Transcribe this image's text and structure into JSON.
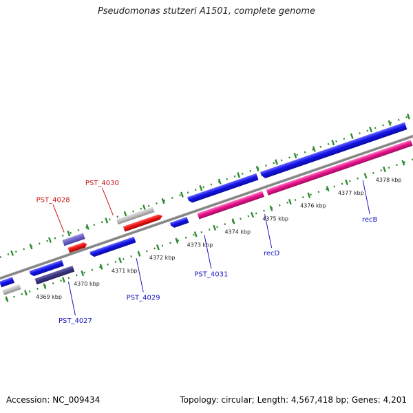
{
  "header": {
    "title": "Pseudomonas stutzeri A1501, complete genome"
  },
  "footer": {
    "accession": "Accession: NC_009434",
    "summary": "Topology: circular; Length: 4,567,418 bp; Genes: 4,201"
  },
  "colors": {
    "backbone": "#8a8a8a",
    "tick_dots": "#2e8b2e",
    "forward_gene": "#1414e6",
    "reverse_gene": "#e61414",
    "rna_gene": "#e6148c",
    "dark_gene": "#3a3580",
    "light_gene": "#6a60c8",
    "pseudo_gene": "#b8b8b8",
    "label_forward": "#1515c0",
    "label_reverse": "#cc1111"
  },
  "chart_data": {
    "type": "linear-genome-map",
    "title": "Pseudomonas stutzeri A1501, complete genome",
    "axis_unit": "kbp",
    "ticks": [
      {
        "kbp": 4369,
        "label": "4369 kbp"
      },
      {
        "kbp": 4370,
        "label": "4370 kbp"
      },
      {
        "kbp": 4371,
        "label": "4371 kbp"
      },
      {
        "kbp": 4372,
        "label": "4372 kbp"
      },
      {
        "kbp": 4373,
        "label": "4373 kbp"
      },
      {
        "kbp": 4374,
        "label": "4374 kbp"
      },
      {
        "kbp": 4375,
        "label": "4375 kbp"
      },
      {
        "kbp": 4376,
        "label": "4376 kbp"
      },
      {
        "kbp": 4377,
        "label": "4377 kbp"
      },
      {
        "kbp": 4378,
        "label": "4378 kbp"
      }
    ],
    "gene_labels": [
      {
        "name": "PST_4027",
        "strand": "forward",
        "kbp": 4369.6
      },
      {
        "name": "PST_4028",
        "strand": "reverse",
        "kbp": 4369.9
      },
      {
        "name": "PST_4029",
        "strand": "forward",
        "kbp": 4371.4
      },
      {
        "name": "PST_4030",
        "strand": "reverse",
        "kbp": 4371.2
      },
      {
        "name": "PST_4031",
        "strand": "forward",
        "kbp": 4373.2
      },
      {
        "name": "recD",
        "strand": "forward",
        "kbp": 4374.8
      },
      {
        "name": "recB",
        "strand": "forward",
        "kbp": 4377.4
      }
    ]
  }
}
